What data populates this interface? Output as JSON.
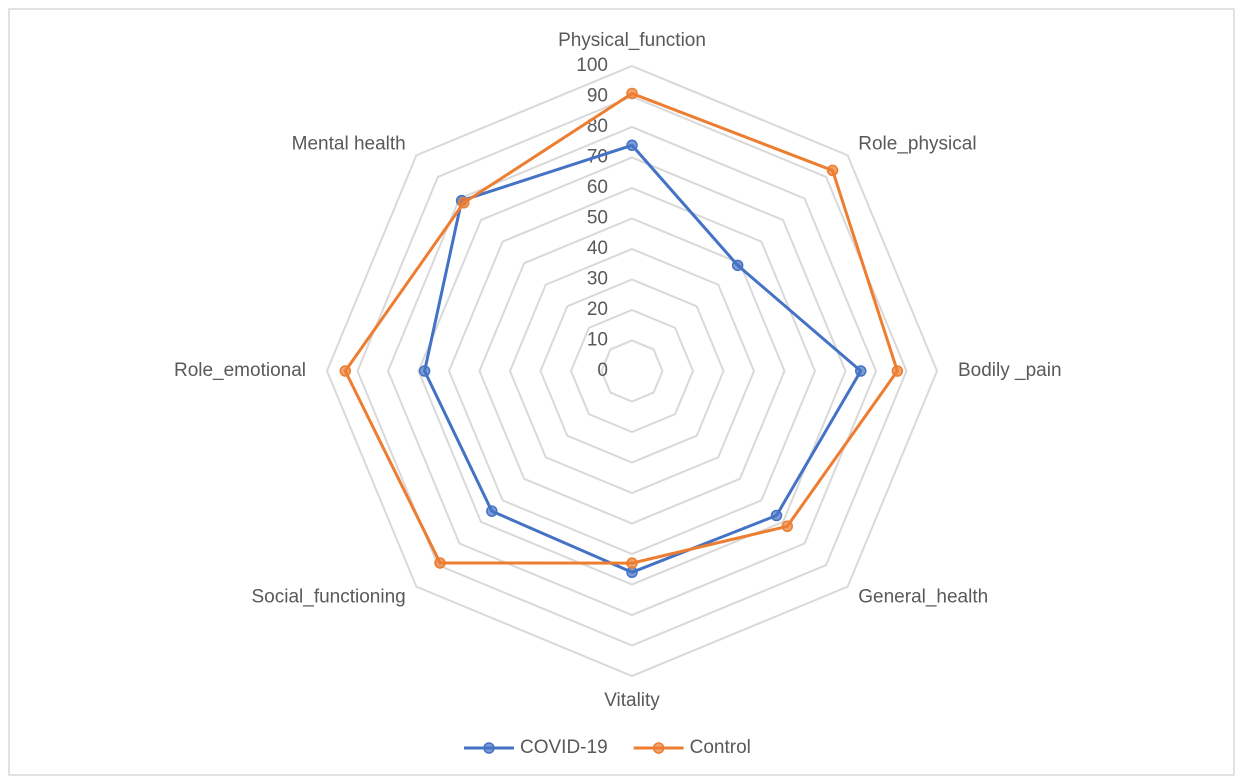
{
  "chart_data": {
    "type": "radar",
    "categories": [
      "Physical_function",
      "Role_physical",
      "Bodily _pain",
      "General_health",
      "Vitality",
      "Social_functioning",
      "Role_emotional",
      "Mental health"
    ],
    "series": [
      {
        "name": "COVID-19",
        "color": "#4472c4",
        "values": [
          74,
          49,
          75,
          67,
          66,
          65,
          68,
          79
        ]
      },
      {
        "name": "Control",
        "color": "#ed7d31",
        "values": [
          91,
          93,
          87,
          72,
          63,
          89,
          94,
          78
        ]
      }
    ],
    "ylim": [
      0,
      100
    ],
    "yticks": [
      0,
      10,
      20,
      30,
      40,
      50,
      60,
      70,
      80,
      90,
      100
    ],
    "grid": true
  }
}
